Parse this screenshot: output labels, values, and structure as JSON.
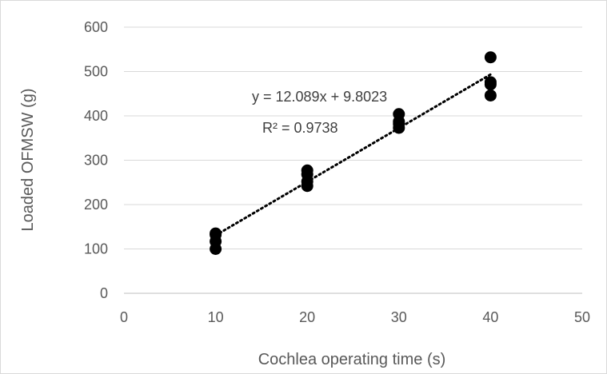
{
  "chart_data": {
    "type": "scatter",
    "title": "",
    "xlabel": "Cochlea operating time (s)",
    "ylabel": "Loaded OFMSW (g)",
    "xlim": [
      0,
      50
    ],
    "ylim": [
      0,
      600
    ],
    "xticks": [
      0,
      10,
      20,
      30,
      40,
      50
    ],
    "yticks": [
      0,
      100,
      200,
      300,
      400,
      500,
      600
    ],
    "grid": "horizontal",
    "legend": "none",
    "marker_color": "#000000",
    "trendline": {
      "type": "linear",
      "style": "dotted",
      "slope": 12.089,
      "intercept": 9.8023,
      "x_range": [
        10,
        40
      ],
      "equation_label": "y = 12.089x + 9.8023",
      "r2_label": "R² = 0.9738"
    },
    "series": [
      {
        "points": [
          {
            "x": 10,
            "y": 100
          },
          {
            "x": 10,
            "y": 117
          },
          {
            "x": 10,
            "y": 132
          },
          {
            "x": 10,
            "y": 135
          },
          {
            "x": 20,
            "y": 242
          },
          {
            "x": 20,
            "y": 252
          },
          {
            "x": 20,
            "y": 268
          },
          {
            "x": 20,
            "y": 277
          },
          {
            "x": 30,
            "y": 373
          },
          {
            "x": 30,
            "y": 382
          },
          {
            "x": 30,
            "y": 387
          },
          {
            "x": 30,
            "y": 404
          },
          {
            "x": 40,
            "y": 446
          },
          {
            "x": 40,
            "y": 471
          },
          {
            "x": 40,
            "y": 476
          },
          {
            "x": 40,
            "y": 532
          }
        ]
      }
    ]
  }
}
